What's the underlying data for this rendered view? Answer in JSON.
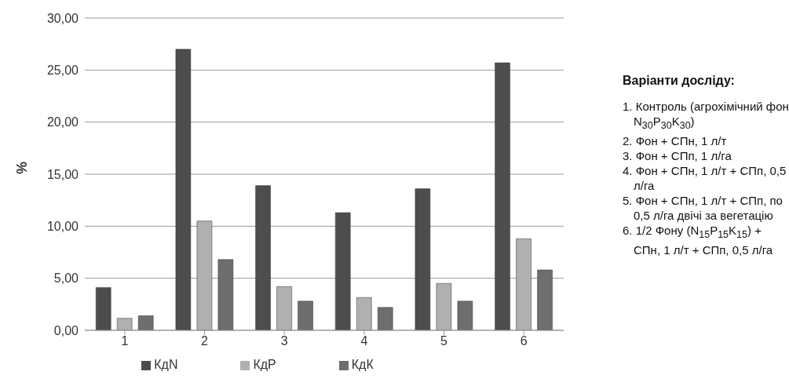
{
  "chart_data": {
    "type": "bar",
    "ylabel": "%",
    "categories": [
      "1",
      "2",
      "3",
      "4",
      "5",
      "6"
    ],
    "series": [
      {
        "name": "КдN",
        "color": "#4d4d4d",
        "values": [
          4.1,
          27.0,
          13.9,
          11.3,
          13.6,
          25.7
        ]
      },
      {
        "name": "КдР",
        "color": "#b0b0b0",
        "values": [
          1.15,
          10.5,
          4.2,
          3.15,
          4.5,
          8.8
        ]
      },
      {
        "name": "КдК",
        "color": "#6e6e6e",
        "values": [
          1.4,
          6.8,
          2.8,
          2.2,
          2.8,
          5.8
        ]
      }
    ],
    "ylim": [
      0,
      30
    ],
    "yticks": [
      {
        "value": 0,
        "label": "0,00"
      },
      {
        "value": 5,
        "label": "5,00"
      },
      {
        "value": 10,
        "label": "10,00"
      },
      {
        "value": 15,
        "label": "15,00"
      },
      {
        "value": 20,
        "label": "20,00"
      },
      {
        "value": 25,
        "label": "25,00"
      },
      {
        "value": 30,
        "label": "30,00"
      }
    ],
    "grid": "y",
    "legend": "bottom",
    "annotations": [
      "Варіанти досліду:",
      "1. Контроль (агрохімічний фон N$_{30}$P$_{30}$K$_{30}$)",
      "2. Фон + СПн, 1 л/т",
      "3. Фон + СПп, 1 л/га",
      "4. Фон + СПн, 1 л/т + СПп, 0,5 л/га",
      "5. Фон + СПн, 1 л/т + СПп, по 0,5 л/га двічі за вегетацію",
      "6. 1/2 Фону (N$_{15}$P$_{15}$K$_{15}$) + СПн, 1 л/т + СПп, 0,5 л/га"
    ]
  }
}
